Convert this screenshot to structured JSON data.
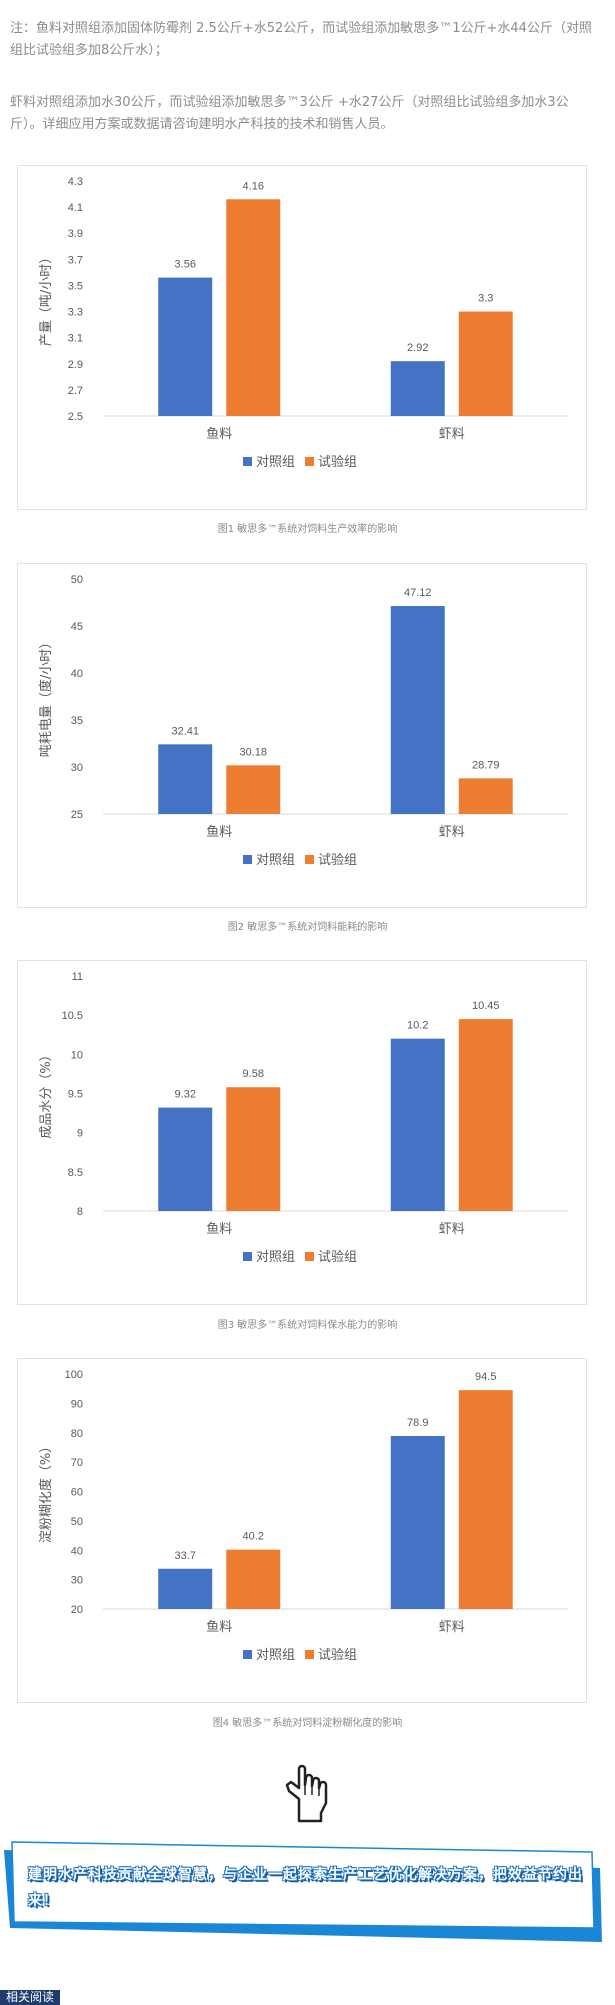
{
  "notes": {
    "note1": "注：鱼料对照组添加固体防霉剂 2.5公斤+水52公斤，而试验组添加敏思多™1公斤+水44公斤（对照组比试验组多加8公斤水）；",
    "note2": "虾料对照组添加水30公斤，而试验组添加敏思多™3公斤 +水27公斤（对照组比试验组多加水3公斤）。详细应用方案或数据请咨询建明水产科技的技术和销售人员。"
  },
  "colors": {
    "control": "#4472c4",
    "test": "#ed7d31",
    "axis": "#d9d9d9",
    "text": "#595959"
  },
  "chart_data": [
    {
      "type": "bar",
      "categories": [
        "鱼料",
        "虾料"
      ],
      "series": [
        {
          "name": "对照组",
          "values": [
            3.56,
            2.92
          ]
        },
        {
          "name": "试验组",
          "values": [
            4.16,
            3.3
          ]
        }
      ],
      "ylabel": "产量（吨/小时）",
      "ylim": [
        2.5,
        4.3
      ],
      "yticks": [
        2.5,
        2.7,
        2.9,
        3.1,
        3.3,
        3.5,
        3.7,
        3.9,
        4.1,
        4.3
      ],
      "ytick_labels": [
        "2.5",
        "2.7",
        "2.9",
        "3.1",
        "3.3",
        "3.5",
        "3.7",
        "3.9",
        "4.1",
        "4.3"
      ],
      "value_labels": [
        [
          "3.56",
          "2.92"
        ],
        [
          "4.16",
          "3.3"
        ]
      ],
      "legend": "bottom",
      "grid": false,
      "caption": "图1 敏思多™系统对饲料生产效率的影响"
    },
    {
      "type": "bar",
      "categories": [
        "鱼料",
        "虾料"
      ],
      "series": [
        {
          "name": "对照组",
          "values": [
            32.41,
            47.12
          ]
        },
        {
          "name": "试验组",
          "values": [
            30.18,
            28.79
          ]
        }
      ],
      "ylabel": "吨耗电量（度/小时）",
      "ylim": [
        25,
        50
      ],
      "yticks": [
        25,
        30,
        35,
        40,
        45,
        50
      ],
      "ytick_labels": [
        "25",
        "30",
        "35",
        "40",
        "45",
        "50"
      ],
      "value_labels": [
        [
          "32.41",
          "47.12"
        ],
        [
          "30.18",
          "28.79"
        ]
      ],
      "legend": "bottom",
      "grid": false,
      "caption": "图2 敏思多™系统对饲料能耗的影响"
    },
    {
      "type": "bar",
      "categories": [
        "鱼料",
        "虾料"
      ],
      "series": [
        {
          "name": "对照组",
          "values": [
            9.32,
            10.2
          ]
        },
        {
          "name": "试验组",
          "values": [
            9.58,
            10.45
          ]
        }
      ],
      "ylabel": "成品水分（%）",
      "ylim": [
        8,
        11
      ],
      "yticks": [
        8,
        8.5,
        9,
        9.5,
        10,
        10.5,
        11
      ],
      "ytick_labels": [
        "8",
        "8.5",
        "9",
        "9.5",
        "10",
        "10.5",
        "11"
      ],
      "value_labels": [
        [
          "9.32",
          "10.2"
        ],
        [
          "9.58",
          "10.45"
        ]
      ],
      "legend": "bottom",
      "grid": false,
      "caption": "图3 敏思多™系统对饲料保水能力的影响"
    },
    {
      "type": "bar",
      "categories": [
        "鱼料",
        "虾料"
      ],
      "series": [
        {
          "name": "对照组",
          "values": [
            33.7,
            78.9
          ]
        },
        {
          "name": "试验组",
          "values": [
            40.2,
            94.5
          ]
        }
      ],
      "ylabel": "淀粉糊化度（%）",
      "ylim": [
        20,
        100
      ],
      "yticks": [
        20,
        30,
        40,
        50,
        60,
        70,
        80,
        90,
        100
      ],
      "ytick_labels": [
        "20",
        "30",
        "40",
        "50",
        "60",
        "70",
        "80",
        "90",
        "100"
      ],
      "value_labels": [
        [
          "33.7",
          "78.9"
        ],
        [
          "40.2",
          "94.5"
        ]
      ],
      "legend": "bottom",
      "grid": false,
      "caption": "图4 敏思多™系统对饲料淀粉糊化度的影响"
    }
  ],
  "banner": {
    "text": "建明水产科技贡献全球智慧，与企业一起探索生产工艺优化解决方案，把效益节约出来！"
  },
  "related": {
    "label": "相关阅读"
  },
  "icons": {
    "hand": "pointing-hand-icon"
  }
}
